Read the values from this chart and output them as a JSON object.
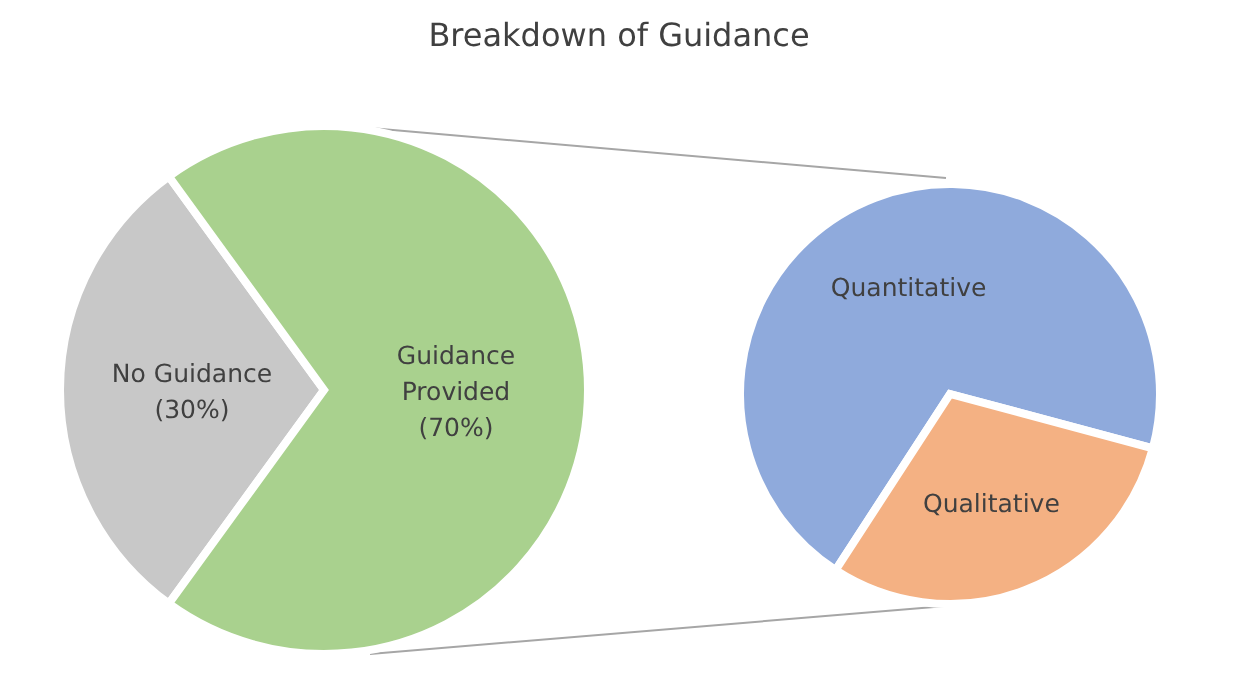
{
  "chart_data": [
    {
      "type": "pie",
      "title": "Breakdown of Guidance",
      "categories": [
        "No Guidance",
        "Guidance Provided"
      ],
      "values": [
        30,
        70
      ],
      "value_labels": [
        "(30%)",
        "(70%)"
      ],
      "colors": [
        "#c8c8c8",
        "#a9d18e"
      ],
      "legend": false
    },
    {
      "type": "pie",
      "categories": [
        "Quantitative",
        "Qualitative"
      ],
      "values": [
        70,
        30
      ],
      "colors": [
        "#8faadc",
        "#f4b183"
      ],
      "legend": false
    }
  ]
}
